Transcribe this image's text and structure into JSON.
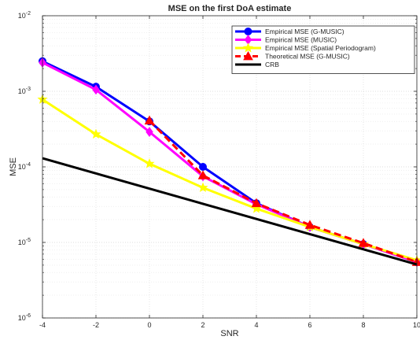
{
  "chart_data": {
    "type": "line",
    "title": "MSE on the first DoA estimate",
    "xlabel": "SNR",
    "ylabel": "MSE",
    "xlim": [
      -4,
      10
    ],
    "ylim": [
      1e-06,
      0.01
    ],
    "yscale": "log",
    "grid": true,
    "legend_position": "top-right",
    "x_ticks": [
      "-4",
      "-2",
      "0",
      "2",
      "4",
      "6",
      "8",
      "10"
    ],
    "y_ticks": [
      {
        "base": "10",
        "exp": "-6"
      },
      {
        "base": "10",
        "exp": "-5"
      },
      {
        "base": "10",
        "exp": "-4"
      },
      {
        "base": "10",
        "exp": "-3"
      },
      {
        "base": "10",
        "exp": "-2"
      }
    ],
    "series": [
      {
        "name": "Empirical MSE (G-MUSIC)",
        "color": "#0000ff",
        "marker": "circle",
        "line": "solid",
        "x": [
          -4,
          -2,
          0,
          2,
          4,
          6,
          8,
          10
        ],
        "y": [
          0.0025,
          0.00115,
          0.0004,
          0.0001,
          3.3e-05,
          1.6e-05,
          9.5e-06,
          5.5e-06
        ]
      },
      {
        "name": "Empirical MSE (MUSIC)",
        "color": "#ff00ff",
        "marker": "diamond",
        "line": "solid",
        "x": [
          -4,
          -2,
          0,
          2,
          4,
          6,
          8,
          10
        ],
        "y": [
          0.0024,
          0.00105,
          0.00029,
          7.5e-05,
          3.2e-05,
          1.6e-05,
          9.5e-06,
          5.5e-06
        ]
      },
      {
        "name": "Empirical MSE (Spatial Periodogram)",
        "color": "#ffff00",
        "marker": "star",
        "line": "solid",
        "x": [
          -4,
          -2,
          0,
          2,
          4,
          6,
          8,
          10
        ],
        "y": [
          0.00078,
          0.00027,
          0.00011,
          5.3e-05,
          2.8e-05,
          1.6e-05,
          9.5e-06,
          5.8e-06
        ]
      },
      {
        "name": "Theoretical MSE (G-MUSIC)",
        "color": "#ff0000",
        "marker": "triangle",
        "line": "dashed",
        "x": [
          0,
          2,
          4,
          6,
          8,
          10
        ],
        "y": [
          0.00041,
          7.7e-05,
          3.3e-05,
          1.7e-05,
          9.8e-06,
          5.5e-06
        ]
      },
      {
        "name": "CRB",
        "color": "#000000",
        "marker": "none",
        "line": "solid",
        "x": [
          -4,
          10
        ],
        "y": [
          0.00013,
          5.1e-06
        ]
      }
    ]
  }
}
